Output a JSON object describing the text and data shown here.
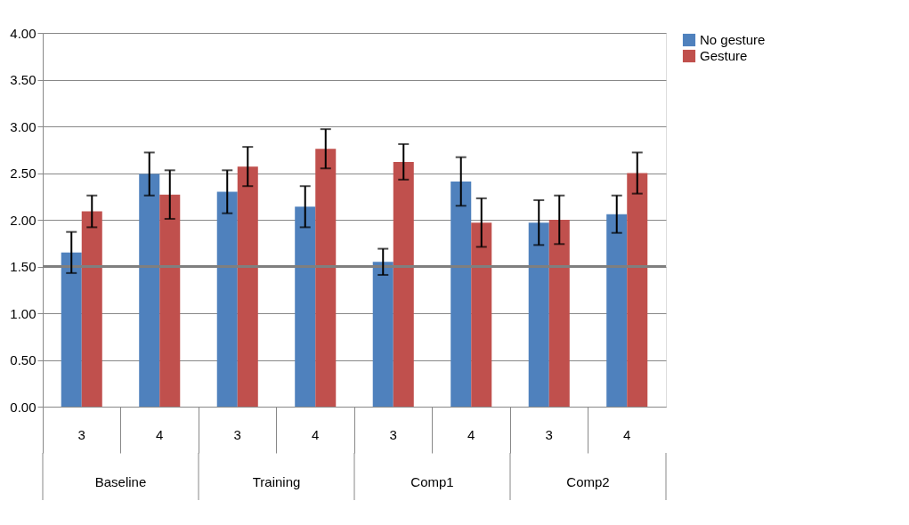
{
  "chart_data": {
    "type": "bar",
    "categories": [
      "3",
      "4",
      "3",
      "4",
      "3",
      "4",
      "3",
      "4"
    ],
    "annotations": [
      "Baseline",
      "Training",
      "Comp1",
      "Comp2"
    ],
    "series": [
      {
        "name": "No gesture",
        "color": "#4f81bd",
        "values": [
          1.65,
          2.49,
          2.3,
          2.14,
          1.55,
          2.41,
          1.97,
          2.06
        ],
        "errors": [
          0.22,
          0.23,
          0.23,
          0.22,
          0.14,
          0.26,
          0.24,
          0.2
        ]
      },
      {
        "name": "Gesture",
        "color": "#c0504d",
        "values": [
          2.09,
          2.27,
          2.57,
          2.76,
          2.62,
          1.97,
          2.0,
          2.5
        ],
        "errors": [
          0.17,
          0.26,
          0.21,
          0.21,
          0.19,
          0.26,
          0.26,
          0.22
        ]
      }
    ],
    "ylim": [
      0,
      4
    ],
    "yticks": [
      {
        "value": 0,
        "label": "0.00"
      },
      {
        "value": 0.5,
        "label": "0.50"
      },
      {
        "value": 1,
        "label": "1.00"
      },
      {
        "value": 1.5,
        "label": "1.50"
      },
      {
        "value": 2,
        "label": "2.00"
      },
      {
        "value": 2.5,
        "label": "2.50"
      },
      {
        "value": 3,
        "label": "3.00"
      },
      {
        "value": 3.5,
        "label": "3.50"
      },
      {
        "value": 4,
        "label": "4.00"
      }
    ],
    "ref_lines": [
      {
        "axis": "y",
        "value": 1.5,
        "color": "#7f7f7f"
      }
    ],
    "grid": "y",
    "legend": "right"
  }
}
